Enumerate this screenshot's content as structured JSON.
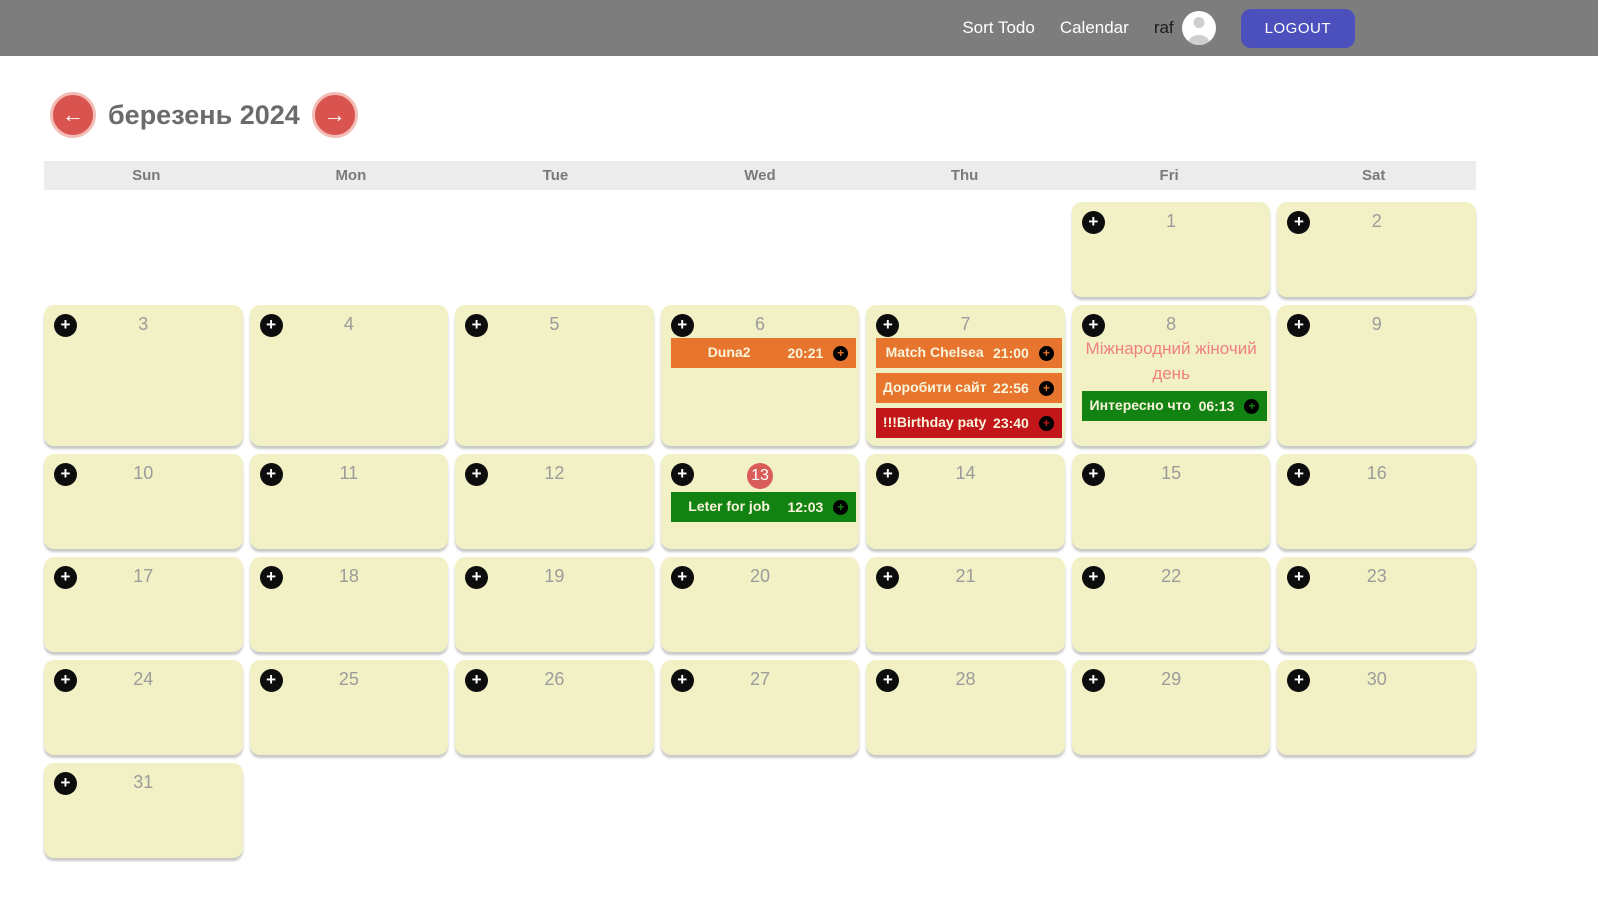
{
  "glyphs": {
    "plus": "+",
    "arrow_left": "←",
    "arrow_right": "→"
  },
  "colors": {
    "navbar_bg": "#7d7d7d",
    "logout_bg": "#4b50bd",
    "accent_red": "#d9534f",
    "cell_bg": "#f1f1c5",
    "holiday_text": "#f08080"
  },
  "navbar": {
    "links": [
      {
        "label": "Sort Todo"
      },
      {
        "label": "Calendar"
      }
    ],
    "username": "raf",
    "logout_label": "LOGOUT"
  },
  "header": {
    "title": "березень 2024"
  },
  "calendar": {
    "weekdays": [
      "Sun",
      "Mon",
      "Tue",
      "Wed",
      "Thu",
      "Fri",
      "Sat"
    ],
    "first_day_column": 5,
    "num_days": 31,
    "today": 13,
    "event_colors": {
      "orange": "#e7752d",
      "red": "#c3161b",
      "green": "#128212"
    },
    "holidays": [
      {
        "day": 8,
        "label": "Міжнародний жіночий день"
      }
    ],
    "events": [
      {
        "day": 6,
        "name": "Duna2",
        "time": "20:21",
        "color": "orange"
      },
      {
        "day": 7,
        "name": "Match Chelsea",
        "time": "21:00",
        "color": "orange"
      },
      {
        "day": 7,
        "name": "Доробити сайт",
        "time": "22:56",
        "color": "orange"
      },
      {
        "day": 7,
        "name": "!!!Birthday paty",
        "time": "23:40",
        "color": "red"
      },
      {
        "day": 8,
        "name": "Интересно что",
        "time": "06:13",
        "color": "green"
      },
      {
        "day": 13,
        "name": "Leter for job",
        "time": "12:03",
        "color": "green"
      }
    ]
  }
}
